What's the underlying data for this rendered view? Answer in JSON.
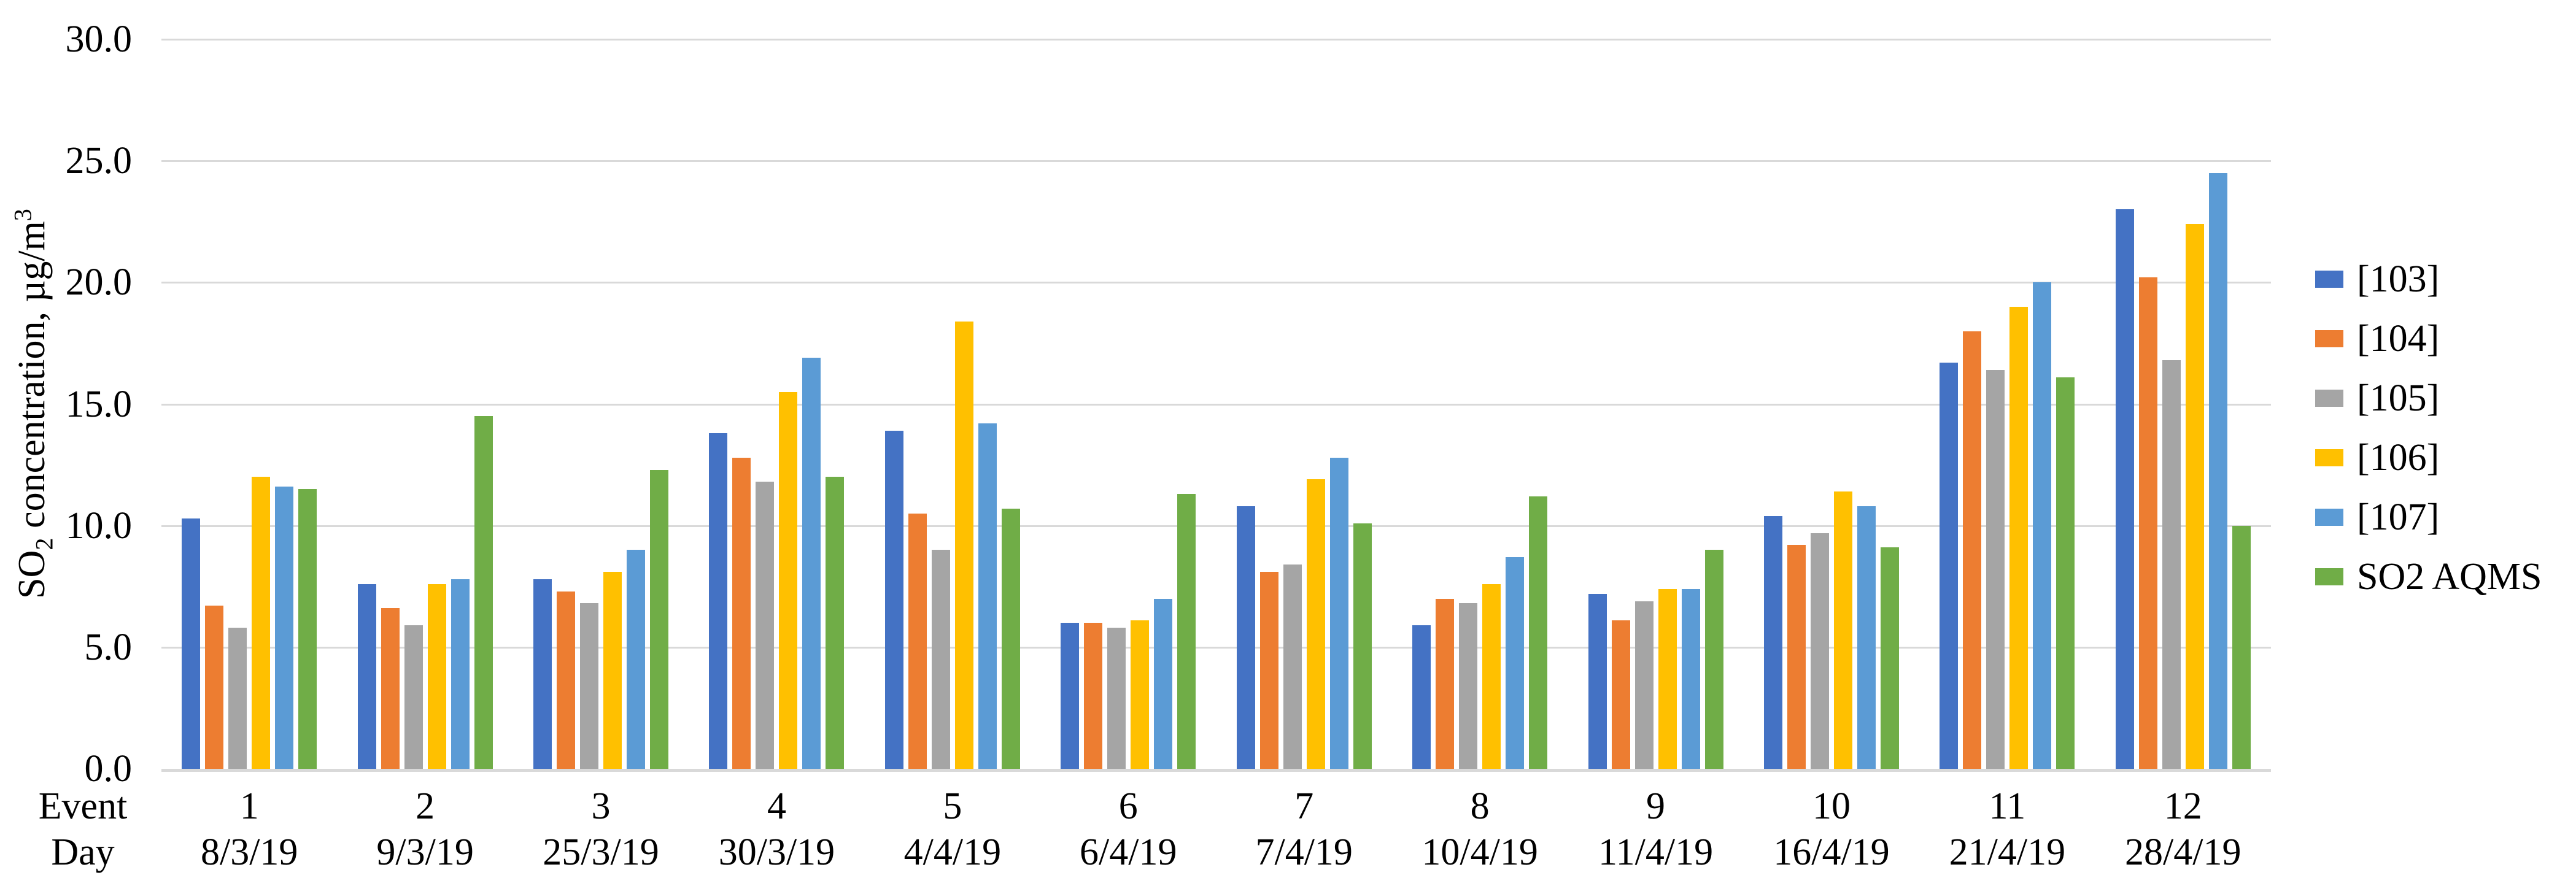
{
  "chart_data": {
    "type": "bar",
    "title": "",
    "ylabel": "SO2 concentration, µg/m3",
    "ylabel_parts": {
      "prefix": "SO",
      "sub": "2",
      "mid": " concentration, µg/m",
      "sup": "3"
    },
    "xlabel_rows": [
      "Event",
      "Day"
    ],
    "ylim": [
      0,
      30
    ],
    "ytick_step": 5,
    "ytick_labels": [
      "0.0",
      "5.0",
      "10.0",
      "15.0",
      "20.0",
      "25.0",
      "30.0"
    ],
    "grid": true,
    "legend_position": "right",
    "events": [
      "1",
      "2",
      "3",
      "4",
      "5",
      "6",
      "7",
      "8",
      "9",
      "10",
      "11",
      "12"
    ],
    "days": [
      "8/3/19",
      "9/3/19",
      "25/3/19",
      "30/3/19",
      "4/4/19",
      "6/4/19",
      "7/4/19",
      "10/4/19",
      "11/4/19",
      "16/4/19",
      "21/4/19",
      "28/4/19"
    ],
    "series": [
      {
        "name": "[103]",
        "key": "103",
        "color": "#4472C4",
        "values": [
          10.3,
          7.6,
          7.8,
          13.8,
          13.9,
          6.0,
          10.8,
          5.9,
          7.2,
          10.4,
          16.7,
          23.0
        ]
      },
      {
        "name": "[104]",
        "key": "104",
        "color": "#ED7D31",
        "values": [
          6.7,
          6.6,
          7.3,
          12.8,
          10.5,
          6.0,
          8.1,
          7.0,
          6.1,
          9.2,
          18.0,
          20.2
        ]
      },
      {
        "name": "[105]",
        "key": "105",
        "color": "#A5A5A5",
        "values": [
          5.8,
          5.9,
          6.8,
          11.8,
          9.0,
          5.8,
          8.4,
          6.8,
          6.9,
          9.7,
          16.4,
          16.8
        ]
      },
      {
        "name": "[106]",
        "key": "106",
        "color": "#FFC000",
        "values": [
          12.0,
          7.6,
          8.1,
          15.5,
          18.4,
          6.1,
          11.9,
          7.6,
          7.4,
          11.4,
          19.0,
          22.4
        ]
      },
      {
        "name": "[107]",
        "key": "107",
        "color": "#5B9BD5",
        "values": [
          11.6,
          7.8,
          9.0,
          16.9,
          14.2,
          7.0,
          12.8,
          8.7,
          7.4,
          10.8,
          20.0,
          24.5
        ]
      },
      {
        "name": "SO2 AQMS",
        "key": "so2-aqms",
        "color": "#70AD47",
        "values": [
          11.5,
          14.5,
          12.3,
          12.0,
          10.7,
          11.3,
          10.1,
          11.2,
          9.0,
          9.1,
          16.1,
          10.0
        ]
      }
    ]
  }
}
